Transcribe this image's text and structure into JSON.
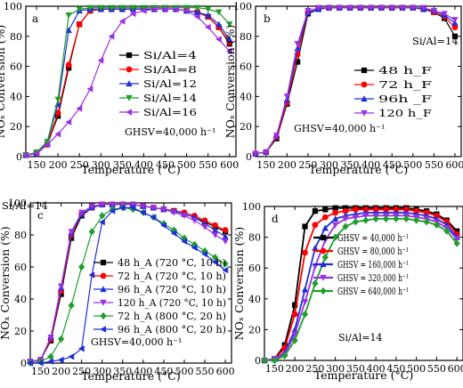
{
  "figure": {
    "panels": [
      {
        "id": "a",
        "panel_label": "a",
        "annotation": "GHSV=40,000 h⁻¹",
        "legend_title": "",
        "legend_width": 60
      },
      {
        "id": "b",
        "panel_label": "b",
        "annotation": "GHSV=40,000 h⁻¹",
        "legend_title": "Si/Al=14",
        "legend_width": 60
      },
      {
        "id": "c",
        "panel_label": "c",
        "annotation": "GHSV=40,000 h⁻¹",
        "legend_title": "Si/Al=14",
        "legend_width": 122
      },
      {
        "id": "d",
        "panel_label": "d",
        "annotation": "Si/Al=14",
        "legend_title": "",
        "legend_width": 80
      }
    ]
  },
  "chart_data": [
    {
      "type": "line",
      "title": "",
      "xlabel": "Temperature (°C)",
      "ylabel": "NOₓ Conversion (%)",
      "xlim": [
        125,
        615
      ],
      "ylim": [
        0,
        100
      ],
      "xticks": [
        150,
        200,
        250,
        300,
        350,
        400,
        450,
        500,
        550,
        600
      ],
      "yticks": [
        0,
        20,
        40,
        60,
        80,
        100
      ],
      "x": [
        125,
        150,
        175,
        200,
        225,
        250,
        275,
        300,
        325,
        350,
        375,
        400,
        425,
        450,
        475,
        500,
        525,
        550,
        575,
        600
      ],
      "series": [
        {
          "name": "Si/Al=4",
          "color": "#000000",
          "marker": "square",
          "values": [
            1,
            2,
            8,
            27,
            59,
            88,
            97,
            98,
            98,
            98,
            98,
            98,
            98,
            98,
            98,
            97,
            96,
            93,
            86,
            75
          ]
        },
        {
          "name": "Si/Al=8",
          "color": "#ff0000",
          "marker": "circle",
          "values": [
            1,
            2,
            8,
            29,
            61,
            88,
            97,
            98,
            98,
            98,
            98,
            98,
            98,
            98,
            98,
            97,
            96,
            93,
            86,
            76
          ]
        },
        {
          "name": "Si/Al=12",
          "color": "#1f2fd6",
          "marker": "triangle-up",
          "values": [
            1,
            2,
            9,
            35,
            84,
            97,
            98,
            98,
            98,
            98,
            98,
            98,
            98,
            98,
            98,
            97,
            96,
            94,
            88,
            78
          ]
        },
        {
          "name": "Si/Al=14",
          "color": "#1f9e2b",
          "marker": "triangle-down",
          "values": [
            1,
            3,
            10,
            38,
            94,
            98,
            99,
            99,
            99,
            99,
            99,
            99,
            99,
            99,
            99,
            99,
            99,
            98,
            96,
            88
          ]
        },
        {
          "name": "Si/Al=16",
          "color": "#9a30e6",
          "marker": "triangle-left",
          "values": [
            1,
            2,
            8,
            15,
            23,
            32,
            45,
            64,
            80,
            90,
            95,
            97,
            98,
            98,
            98,
            97,
            93,
            86,
            78,
            70
          ]
        }
      ]
    },
    {
      "type": "line",
      "title": "",
      "xlabel": "Temperature (°C)",
      "ylabel": "NOₓ Conversion (%)",
      "xlim": [
        125,
        615
      ],
      "ylim": [
        0,
        100
      ],
      "xticks": [
        150,
        200,
        250,
        300,
        350,
        400,
        450,
        500,
        550,
        600
      ],
      "yticks": [
        0,
        20,
        40,
        60,
        80,
        100
      ],
      "x": [
        125,
        150,
        175,
        200,
        225,
        250,
        275,
        300,
        325,
        350,
        375,
        400,
        425,
        450,
        475,
        500,
        525,
        550,
        575,
        600
      ],
      "series": [
        {
          "name": "48 h_F",
          "color": "#000000",
          "marker": "square",
          "values": [
            2,
            3,
            12,
            35,
            63,
            95,
            98,
            99,
            99,
            99,
            99,
            99,
            99,
            99,
            99,
            99,
            98,
            96,
            92,
            80
          ]
        },
        {
          "name": "72 h_F",
          "color": "#ff0000",
          "marker": "circle",
          "values": [
            2,
            3,
            13,
            36,
            68,
            96,
            98,
            99,
            99,
            99,
            99,
            99,
            99,
            99,
            99,
            99,
            98,
            96,
            93,
            86
          ]
        },
        {
          "name": "96h _F",
          "color": "#1f2fd6",
          "marker": "triangle-up",
          "values": [
            2,
            3,
            14,
            38,
            72,
            96,
            98,
            99,
            99,
            99,
            99,
            99,
            99,
            99,
            99,
            99,
            98,
            97,
            94,
            89
          ]
        },
        {
          "name": "120 h_F",
          "color": "#9a30e6",
          "marker": "triangle-down",
          "values": [
            2,
            3,
            14,
            40,
            75,
            97,
            99,
            99,
            99,
            99,
            99,
            99,
            99,
            99,
            99,
            99,
            99,
            97,
            95,
            91
          ]
        }
      ]
    },
    {
      "type": "line",
      "title": "",
      "xlabel": "Temperature (°C)",
      "ylabel": "NOₓ Conversion (%)",
      "xlim": [
        125,
        615
      ],
      "ylim": [
        0,
        100
      ],
      "xticks": [
        150,
        200,
        250,
        300,
        350,
        400,
        450,
        500,
        550,
        600
      ],
      "yticks": [
        0,
        20,
        40,
        60,
        80,
        100
      ],
      "x": [
        125,
        150,
        175,
        200,
        225,
        250,
        275,
        300,
        325,
        350,
        375,
        400,
        425,
        450,
        475,
        500,
        525,
        550,
        575,
        600
      ],
      "series": [
        {
          "name": "48 h_A (720 °C, 10 h)",
          "color": "#000000",
          "marker": "square",
          "values": [
            1,
            2,
            14,
            43,
            78,
            92,
            97,
            99,
            99,
            99,
            99,
            98,
            97,
            96,
            95,
            93,
            91,
            88,
            85,
            82
          ]
        },
        {
          "name": "72 h_A (720 °C, 10 h)",
          "color": "#ff0000",
          "marker": "circle",
          "values": [
            1,
            2,
            15,
            45,
            80,
            93,
            97,
            99,
            99,
            99,
            99,
            98,
            97,
            96,
            95,
            94,
            92,
            89,
            86,
            83
          ]
        },
        {
          "name": "96 h_A (720 °C, 10 h)",
          "color": "#1f2fd6",
          "marker": "triangle-up",
          "values": [
            1,
            2,
            16,
            47,
            81,
            93,
            97,
            99,
            99,
            99,
            99,
            98,
            97,
            96,
            95,
            93,
            91,
            87,
            83,
            79
          ]
        },
        {
          "name": "120 h_A (720 °C, 10 h)",
          "color": "#9a30e6",
          "marker": "triangle-down",
          "values": [
            1,
            2,
            16,
            48,
            82,
            94,
            98,
            99,
            99,
            99,
            99,
            98,
            97,
            96,
            94,
            92,
            89,
            85,
            80,
            76
          ]
        },
        {
          "name": "72 h_A (800 °C, 20 h)",
          "color": "#1f9e2b",
          "marker": "diamond",
          "values": [
            0,
            1,
            4,
            15,
            36,
            60,
            82,
            92,
            96,
            97,
            96,
            94,
            91,
            87,
            83,
            78,
            74,
            70,
            66,
            62
          ]
        },
        {
          "name": "96 h_A (800 °C, 20 h)",
          "color": "#1f2fd6",
          "marker": "triangle-left",
          "values": [
            0,
            0,
            1,
            2,
            4,
            9,
            55,
            88,
            95,
            97,
            97,
            94,
            91,
            86,
            81,
            76,
            72,
            68,
            63,
            58
          ]
        }
      ]
    },
    {
      "type": "line",
      "title": "",
      "xlabel": "Temperature (°C)",
      "ylabel": "NOₓ Conversion (%)",
      "xlim": [
        125,
        615
      ],
      "ylim": [
        0,
        100
      ],
      "xticks": [
        150,
        200,
        250,
        300,
        350,
        400,
        450,
        500,
        550,
        600
      ],
      "yticks": [
        0,
        20,
        40,
        60,
        80,
        100
      ],
      "x": [
        125,
        150,
        175,
        200,
        225,
        250,
        275,
        300,
        325,
        350,
        375,
        400,
        425,
        450,
        475,
        500,
        525,
        550,
        575,
        600
      ],
      "series": [
        {
          "name": "GHSV = 40,000 h⁻¹",
          "color": "#000000",
          "marker": "square",
          "values": [
            0,
            1,
            10,
            36,
            87,
            97,
            98,
            99,
            99,
            99,
            99,
            99,
            99,
            99,
            99,
            98,
            97,
            95,
            91,
            84
          ]
        },
        {
          "name": "GHSV = 80,000 h⁻¹",
          "color": "#ff0000",
          "marker": "circle",
          "values": [
            0,
            1,
            8,
            30,
            70,
            88,
            93,
            96,
            97,
            98,
            98,
            98,
            98,
            98,
            98,
            97,
            96,
            94,
            90,
            82
          ]
        },
        {
          "name": "GHSV = 160,000 h⁻¹",
          "color": "#1f2fd6",
          "marker": "triangle-up",
          "values": [
            0,
            1,
            5,
            20,
            46,
            73,
            86,
            92,
            94,
            95,
            96,
            96,
            96,
            96,
            96,
            95,
            94,
            92,
            88,
            80
          ]
        },
        {
          "name": "GHSV = 320,000 h⁻¹",
          "color": "#9a30e6",
          "marker": "triangle-down",
          "values": [
            0,
            1,
            4,
            17,
            38,
            61,
            78,
            88,
            92,
            93,
            94,
            94,
            94,
            94,
            94,
            93,
            92,
            90,
            86,
            79
          ]
        },
        {
          "name": "GHSV = 640,000 h⁻¹",
          "color": "#1f9e2b",
          "marker": "diamond",
          "values": [
            0,
            0,
            3,
            13,
            30,
            50,
            67,
            80,
            87,
            90,
            91,
            92,
            92,
            92,
            92,
            91,
            90,
            88,
            84,
            76
          ]
        }
      ]
    }
  ]
}
